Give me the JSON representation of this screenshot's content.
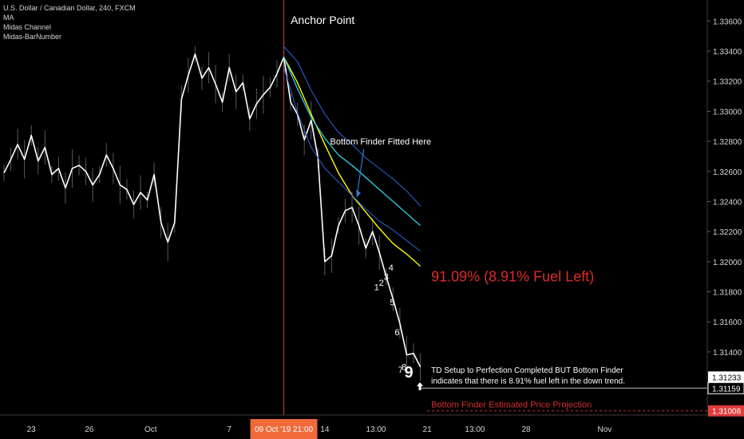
{
  "legend": {
    "symbol": "U.S. Dollar / Canadian Dollar, 240, FXCM",
    "indicators": [
      "MA",
      "Midas Channel",
      "Midas-BarNumber"
    ]
  },
  "chart_data": {
    "type": "line",
    "title": "U.S. Dollar / Canadian Dollar, 240, FXCM",
    "ylim": [
      1.3098,
      1.3374
    ],
    "xlim": [
      0,
      105
    ],
    "grid": false,
    "y_ticks": [
      1.336,
      1.334,
      1.332,
      1.33,
      1.328,
      1.326,
      1.324,
      1.322,
      1.32,
      1.318,
      1.316,
      1.314
    ],
    "y_tick_labels": [
      "1.33600",
      "1.33400",
      "1.33200",
      "1.33000",
      "1.32800",
      "1.32600",
      "1.32400",
      "1.32200",
      "1.32000",
      "1.31800",
      "1.31600",
      "1.31400"
    ],
    "x_ticks": [
      {
        "x": 4,
        "label": "23"
      },
      {
        "x": 12.5,
        "label": "26"
      },
      {
        "x": 21.5,
        "label": "Oct"
      },
      {
        "x": 33,
        "label": "7"
      },
      {
        "x": 47,
        "label": "14"
      },
      {
        "x": 54.5,
        "label": "13:00"
      },
      {
        "x": 62,
        "label": "21"
      },
      {
        "x": 69,
        "label": "13:00"
      },
      {
        "x": 76.5,
        "label": "28"
      },
      {
        "x": 88,
        "label": "Nov"
      }
    ],
    "x_highlight": {
      "x": 41,
      "label": "09 Oct '19   21:00"
    },
    "price_labels": [
      {
        "value": 1.31233,
        "label": "1.31233",
        "style": "white"
      },
      {
        "value": 1.31159,
        "label": "1.31159",
        "style": "outline"
      },
      {
        "value": 1.31008,
        "label": "1.31008",
        "style": "red"
      }
    ],
    "series": [
      {
        "role": "price",
        "color": "#ffffff",
        "x": [
          0,
          1,
          2,
          3,
          4,
          5,
          6,
          7,
          8,
          9,
          10,
          11,
          12,
          13,
          14,
          15,
          16,
          17,
          18,
          19,
          20,
          21,
          22,
          23,
          24,
          25,
          26,
          27,
          28,
          29,
          30,
          31,
          32,
          33,
          34,
          35,
          36,
          37,
          38,
          39,
          40,
          41,
          42,
          43,
          44,
          45,
          46,
          47,
          48,
          49,
          50,
          51,
          52,
          53,
          54,
          55,
          56,
          57,
          58,
          59,
          60,
          61
        ],
        "values": [
          1.3259,
          1.3268,
          1.3278,
          1.3268,
          1.3284,
          1.3267,
          1.3276,
          1.3258,
          1.3262,
          1.3249,
          1.3262,
          1.3264,
          1.326,
          1.3251,
          1.3258,
          1.3271,
          1.3262,
          1.3251,
          1.3248,
          1.3238,
          1.3246,
          1.3241,
          1.3258,
          1.3226,
          1.3213,
          1.3226,
          1.3308,
          1.3324,
          1.3338,
          1.3322,
          1.3329,
          1.3318,
          1.3306,
          1.3329,
          1.3313,
          1.3319,
          1.3295,
          1.3305,
          1.3311,
          1.3316,
          1.3325,
          1.3336,
          1.3306,
          1.3298,
          1.3281,
          1.3294,
          1.3269,
          1.32,
          1.3204,
          1.3224,
          1.3234,
          1.3236,
          1.3224,
          1.3209,
          1.322,
          1.3206,
          1.319,
          1.3175,
          1.3159,
          1.3138,
          1.3139,
          1.313
        ]
      },
      {
        "role": "ma",
        "color": "#ffff00",
        "x": [
          41,
          43,
          45,
          47,
          49,
          51,
          53,
          55,
          57,
          59,
          61
        ],
        "values": [
          1.3336,
          1.3319,
          1.3298,
          1.3278,
          1.3259,
          1.3244,
          1.3233,
          1.3222,
          1.3212,
          1.3205,
          1.3197
        ]
      },
      {
        "role": "midas-center",
        "color": "#2bc6dc",
        "x": [
          41,
          43,
          45,
          47,
          49,
          51,
          53,
          55,
          57,
          59,
          61
        ],
        "values": [
          1.3336,
          1.3315,
          1.3296,
          1.3282,
          1.3271,
          1.3264,
          1.3256,
          1.3248,
          1.324,
          1.3232,
          1.3224
        ]
      },
      {
        "role": "midas-upper",
        "color": "#2a5ec8",
        "x": [
          41,
          43,
          45,
          47,
          49,
          51,
          53,
          55,
          57,
          59,
          61
        ],
        "values": [
          1.3343,
          1.3333,
          1.3314,
          1.3298,
          1.3286,
          1.3278,
          1.3269,
          1.3262,
          1.3255,
          1.3247,
          1.3237
        ]
      },
      {
        "role": "midas-lower",
        "color": "#2a5ec8",
        "x": [
          41,
          43,
          45,
          47,
          49,
          51,
          53,
          55,
          57,
          59,
          61
        ],
        "values": [
          1.3329,
          1.3299,
          1.3276,
          1.3262,
          1.3253,
          1.3244,
          1.3235,
          1.3227,
          1.3221,
          1.3214,
          1.3207
        ]
      }
    ],
    "bar_numbers": [
      {
        "label": "1",
        "x": 54.6,
        "y": 1.3181
      },
      {
        "label": "2",
        "x": 55.3,
        "y": 1.3184
      },
      {
        "label": "3",
        "x": 56.0,
        "y": 1.3188
      },
      {
        "label": "4",
        "x": 56.7,
        "y": 1.3194
      },
      {
        "label": "5",
        "x": 56.9,
        "y": 1.3171
      },
      {
        "label": "6",
        "x": 57.6,
        "y": 1.3151
      },
      {
        "label": "7",
        "x": 58.1,
        "y": 1.3126
      },
      {
        "label": "8",
        "x": 58.6,
        "y": 1.3128
      },
      {
        "label": "9",
        "x": 59.3,
        "y": 1.3123
      }
    ],
    "annotations": [
      {
        "text": "Anchor Point",
        "x": 42,
        "y": 1.3358
      },
      {
        "text": "Bottom Finder Fitted Here",
        "x": 54.8,
        "y": 1.3278
      },
      {
        "text": "91.09% (8.91% Fuel Left)",
        "x": 62,
        "y": 1.3187
      },
      {
        "text": "TD Setup to Perfection Completed BUT Bottom Finder",
        "x": 62,
        "y": 1.3126
      },
      {
        "text": "indicates that there is 8.91% fuel left in the down trend.",
        "x": 62,
        "y": 1.3119
      },
      {
        "text": "Bottom Finder Estimated Price Projection",
        "x": 62,
        "y": 1.3103
      }
    ],
    "colors": {
      "background": "#000000",
      "anchor_line": "#e03c3c",
      "highlight_bg": "#f06a3a",
      "fuel_text": "#e02a2a",
      "projection_text": "#d32f2f",
      "axis_text": "#d6d6d6",
      "grid_line": "#2a2a2a",
      "arrow": "#3a78c8"
    }
  }
}
